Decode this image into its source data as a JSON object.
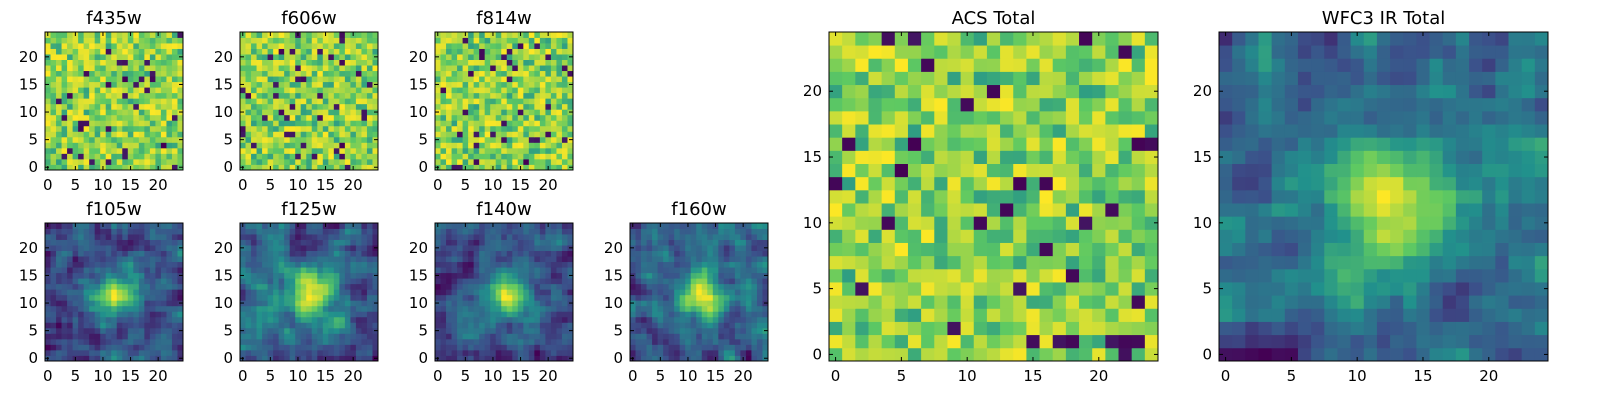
{
  "chart_data": [
    {
      "type": "heatmap",
      "title": "f435w",
      "shape": [
        25,
        25
      ],
      "xticks": [
        "0",
        "5",
        "10",
        "15",
        "20"
      ],
      "yticks": [
        "0",
        "5",
        "10",
        "15",
        "20"
      ],
      "seed": 11,
      "texture": "noise"
    },
    {
      "type": "heatmap",
      "title": "f606w",
      "shape": [
        25,
        25
      ],
      "xticks": [
        "0",
        "5",
        "10",
        "15",
        "20"
      ],
      "yticks": [
        "0",
        "5",
        "10",
        "15",
        "20"
      ],
      "seed": 23,
      "texture": "noise"
    },
    {
      "type": "heatmap",
      "title": "f814w",
      "shape": [
        25,
        25
      ],
      "xticks": [
        "0",
        "5",
        "10",
        "15",
        "20"
      ],
      "yticks": [
        "0",
        "5",
        "10",
        "15",
        "20"
      ],
      "seed": 37,
      "texture": "noise"
    },
    {
      "type": "heatmap",
      "title": "f105w",
      "shape": [
        25,
        25
      ],
      "xticks": [
        "0",
        "5",
        "10",
        "15",
        "20"
      ],
      "yticks": [
        "0",
        "5",
        "10",
        "15",
        "20"
      ],
      "seed": 41,
      "texture": "smooth"
    },
    {
      "type": "heatmap",
      "title": "f125w",
      "shape": [
        25,
        25
      ],
      "xticks": [
        "0",
        "5",
        "10",
        "15",
        "20"
      ],
      "yticks": [
        "0",
        "5",
        "10",
        "15",
        "20"
      ],
      "seed": 53,
      "texture": "smooth"
    },
    {
      "type": "heatmap",
      "title": "f140w",
      "shape": [
        25,
        25
      ],
      "xticks": [
        "0",
        "5",
        "10",
        "15",
        "20"
      ],
      "yticks": [
        "0",
        "5",
        "10",
        "15",
        "20"
      ],
      "seed": 67,
      "texture": "smooth"
    },
    {
      "type": "heatmap",
      "title": "f160w",
      "shape": [
        25,
        25
      ],
      "xticks": [
        "0",
        "5",
        "10",
        "15",
        "20"
      ],
      "yticks": [
        "0",
        "5",
        "10",
        "15",
        "20"
      ],
      "seed": 79,
      "texture": "smooth"
    },
    {
      "type": "heatmap",
      "title": "ACS Total",
      "shape": [
        25,
        25
      ],
      "xticks": [
        "0",
        "5",
        "10",
        "15",
        "20"
      ],
      "yticks": [
        "0",
        "5",
        "10",
        "15",
        "20"
      ],
      "seed": 83,
      "texture": "noise"
    },
    {
      "type": "heatmap",
      "title": "WFC3 IR Total",
      "shape": [
        25,
        25
      ],
      "xticks": [
        "0",
        "5",
        "10",
        "15",
        "20"
      ],
      "yticks": [
        "0",
        "5",
        "10",
        "15",
        "20"
      ],
      "seed": 97,
      "texture": "smooth"
    }
  ],
  "colormap": [
    "#440154",
    "#3b528b",
    "#21918c",
    "#5ec962",
    "#fde725"
  ]
}
